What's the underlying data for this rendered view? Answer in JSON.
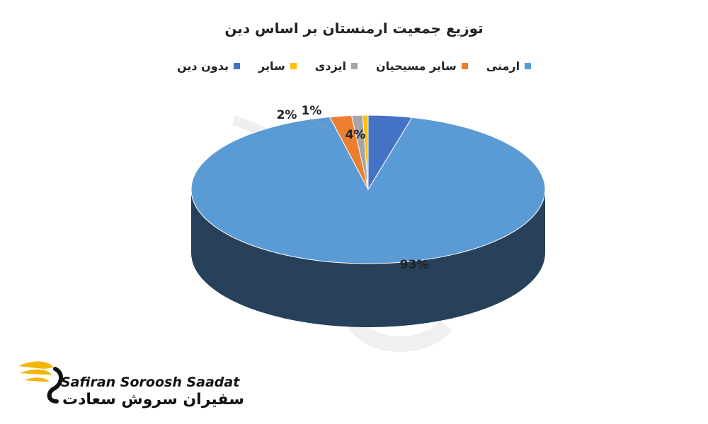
{
  "chart_data": {
    "type": "pie",
    "style": "3d",
    "title": "توزیع جمعیت ارمنستان بر اساس دین",
    "categories": [
      "ارمنی",
      "سایر مسیحیان",
      "ایزدی",
      "سایر",
      "بدون دین"
    ],
    "values": [
      93,
      2,
      1,
      0.5,
      4
    ],
    "data_labels": [
      "93%",
      "2%",
      "1%",
      "",
      "4%"
    ],
    "colors": [
      "#5B9BD5",
      "#ED7D31",
      "#A5A5A5",
      "#FFC000",
      "#4472C4"
    ],
    "legend": {
      "position": "top",
      "items": [
        {
          "label": "ارمنی",
          "color": "#5B9BD5"
        },
        {
          "label": "سایر مسیحیان",
          "color": "#ED7D31"
        },
        {
          "label": "ایزدی",
          "color": "#A5A5A5"
        },
        {
          "label": "سایر",
          "color": "#FFC000"
        },
        {
          "label": "بدون دین",
          "color": "#4472C4"
        }
      ]
    }
  },
  "watermark": {
    "brand_en": "Safiran Soroosh Saadat",
    "brand_fa": "سفیران سروش سعادت",
    "icon": "swan-logo-icon"
  }
}
